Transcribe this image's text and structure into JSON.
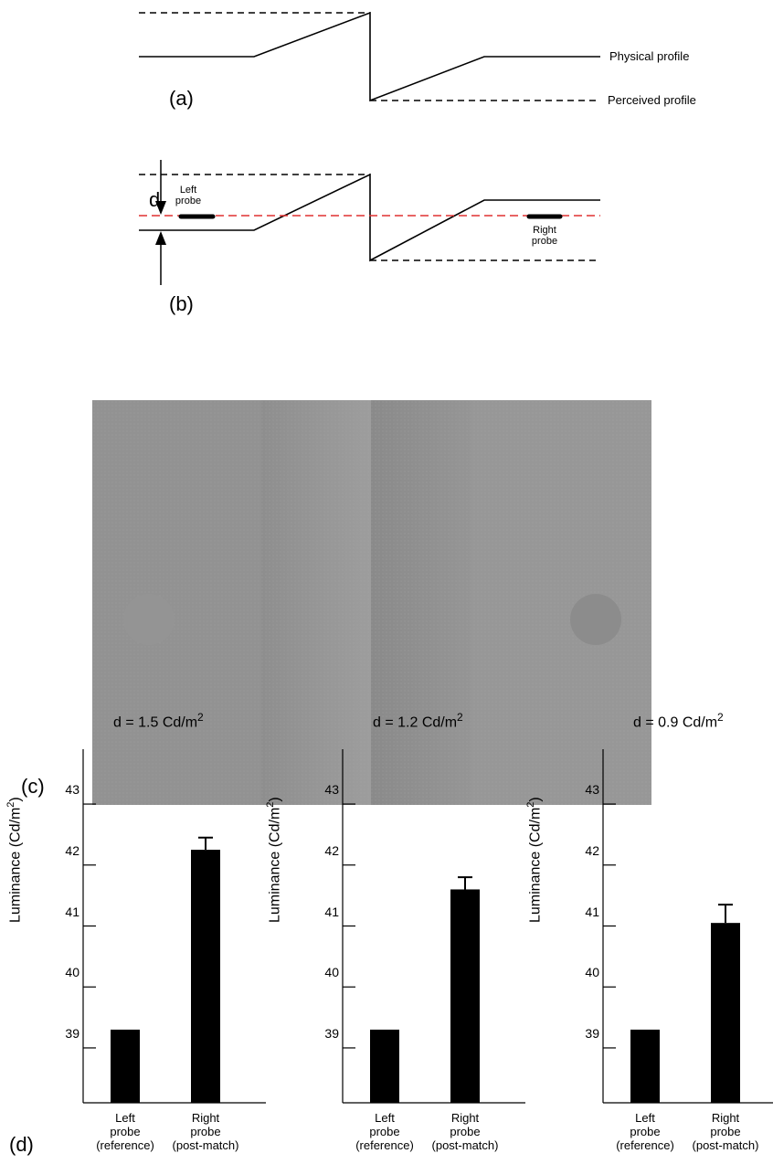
{
  "panel_a": {
    "label": "(a)",
    "legend_physical": "Physical profile",
    "legend_perceived": "Perceived profile"
  },
  "panel_b": {
    "label": "(b)",
    "d_label": "d",
    "left_probe": [
      "Left",
      "probe"
    ],
    "right_probe": [
      "Right",
      "probe"
    ]
  },
  "panel_c": {
    "label": "(c)"
  },
  "panel_d": {
    "label": "(d)"
  },
  "colors": {
    "reference_line": "#e03030",
    "bar": "#000000",
    "stimulus_dark": "#8a8a8a",
    "stimulus_light": "#9a9a9a"
  },
  "chart_data": [
    {
      "type": "bar",
      "title": "d = 1.5 Cd/m",
      "title_sup": "2",
      "ylabel": "Luminance (Cd/m",
      "ylabel_sup": "2",
      "ylabel_end": ")",
      "yticks": [
        "39",
        "40",
        "41",
        "42",
        "43"
      ],
      "ylim": [
        38.1,
        43.9
      ],
      "categories": [
        [
          "Left",
          "probe",
          "(reference)"
        ],
        [
          "Right",
          "probe",
          "(post-match)"
        ]
      ],
      "values": [
        39.3,
        42.25
      ],
      "errors": [
        0,
        0.2
      ]
    },
    {
      "type": "bar",
      "title": "d = 1.2 Cd/m",
      "title_sup": "2",
      "ylabel": "Luminance (Cd/m",
      "ylabel_sup": "2",
      "ylabel_end": ")",
      "yticks": [
        "39",
        "40",
        "41",
        "42",
        "43"
      ],
      "ylim": [
        38.1,
        43.9
      ],
      "categories": [
        [
          "Left",
          "probe",
          "(reference)"
        ],
        [
          "Right",
          "probe",
          "(post-match)"
        ]
      ],
      "values": [
        39.3,
        41.6
      ],
      "errors": [
        0,
        0.2
      ]
    },
    {
      "type": "bar",
      "title": "d = 0.9 Cd/m",
      "title_sup": "2",
      "ylabel": "Luminance (Cd/m",
      "ylabel_sup": "2",
      "ylabel_end": ")",
      "yticks": [
        "39",
        "40",
        "41",
        "42",
        "43"
      ],
      "ylim": [
        38.1,
        43.9
      ],
      "categories": [
        [
          "Left",
          "probe",
          "(reference)"
        ],
        [
          "Right",
          "probe",
          "(post-match)"
        ]
      ],
      "values": [
        39.3,
        41.05
      ],
      "errors": [
        0,
        0.3
      ]
    }
  ]
}
